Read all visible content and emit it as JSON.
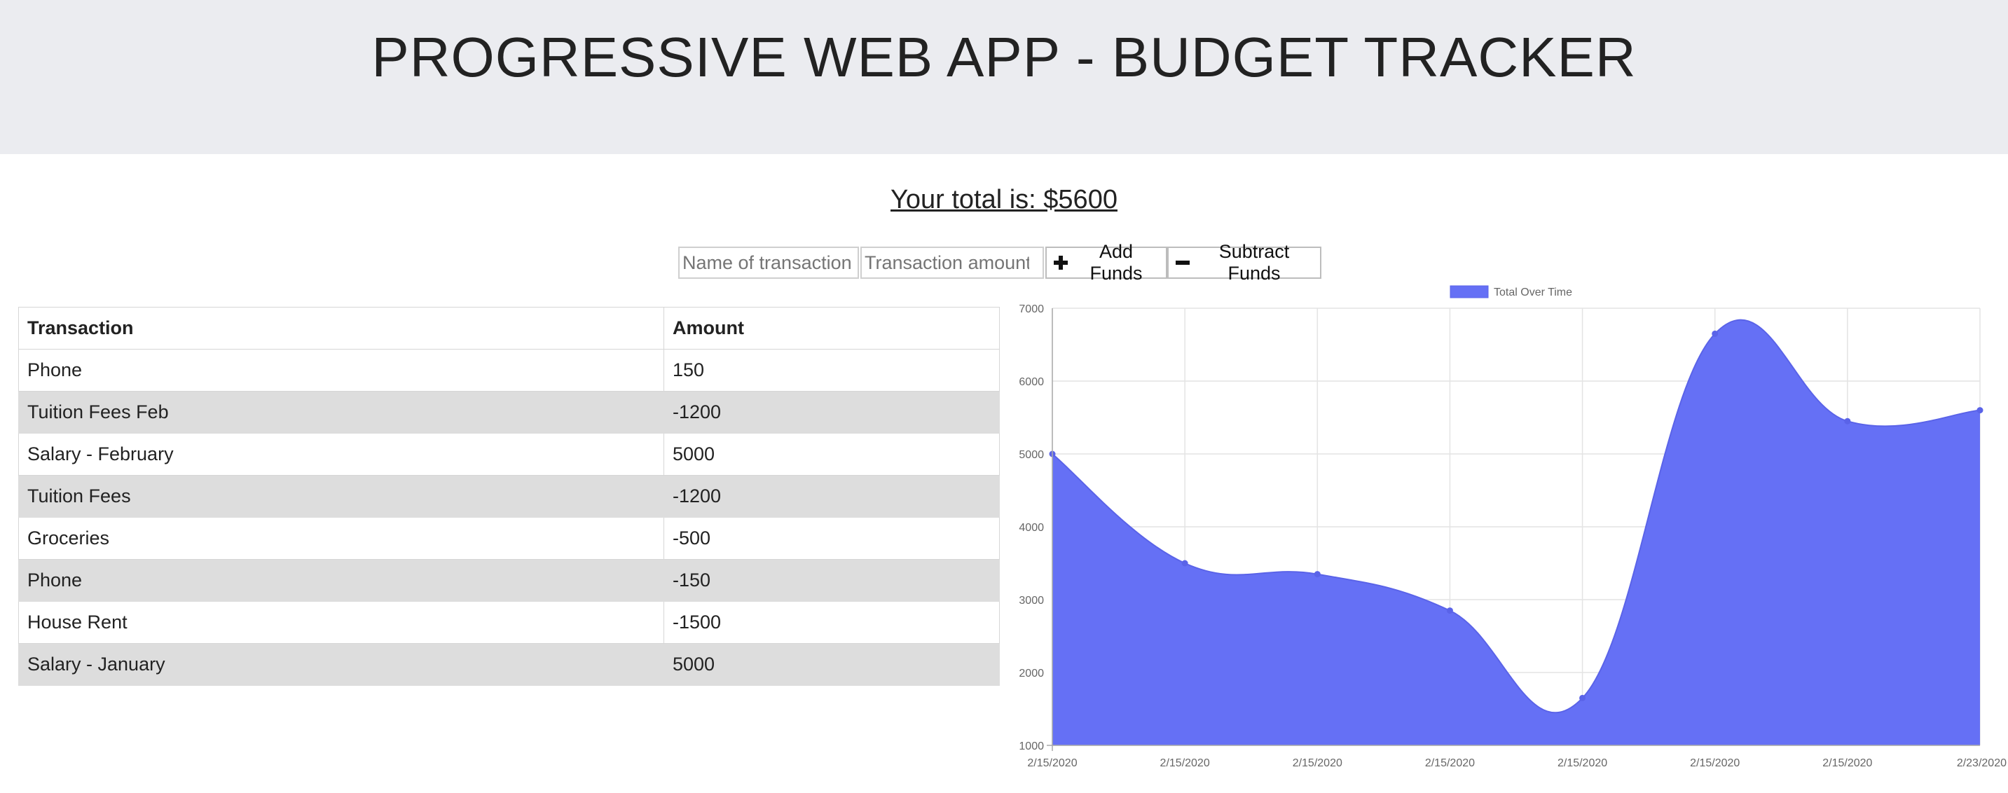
{
  "header": {
    "title": "PROGRESSIVE WEB APP - BUDGET TRACKER"
  },
  "total": {
    "text": "Your total is: $5600"
  },
  "form": {
    "name_placeholder": "Name of transaction",
    "amount_placeholder": "Transaction amount",
    "add_label": "Add Funds",
    "subtract_label": "Subtract Funds"
  },
  "table": {
    "headers": [
      "Transaction",
      "Amount"
    ],
    "rows": [
      {
        "name": "Phone",
        "amount": "150"
      },
      {
        "name": "Tuition Fees Feb",
        "amount": "-1200"
      },
      {
        "name": "Salary - February",
        "amount": "5000"
      },
      {
        "name": "Tuition Fees",
        "amount": "-1200"
      },
      {
        "name": "Groceries",
        "amount": "-500"
      },
      {
        "name": "Phone",
        "amount": "-150"
      },
      {
        "name": "House Rent",
        "amount": "-1500"
      },
      {
        "name": "Salary - January",
        "amount": "5000"
      }
    ]
  },
  "chart_data": {
    "type": "area",
    "series": [
      {
        "name": "Total Over Time",
        "values": [
          5000,
          3500,
          3350,
          2850,
          1650,
          6650,
          5450,
          5600
        ],
        "color": "#6570f5"
      }
    ],
    "categories": [
      "2/15/2020",
      "2/15/2020",
      "2/15/2020",
      "2/15/2020",
      "2/15/2020",
      "2/15/2020",
      "2/15/2020",
      "2/23/2020"
    ],
    "ylim": [
      1000,
      7000
    ],
    "yticks": [
      "7000",
      "6000",
      "5000",
      "4000",
      "3000",
      "2000",
      "1000"
    ],
    "grid": true,
    "legend": "top-center"
  }
}
